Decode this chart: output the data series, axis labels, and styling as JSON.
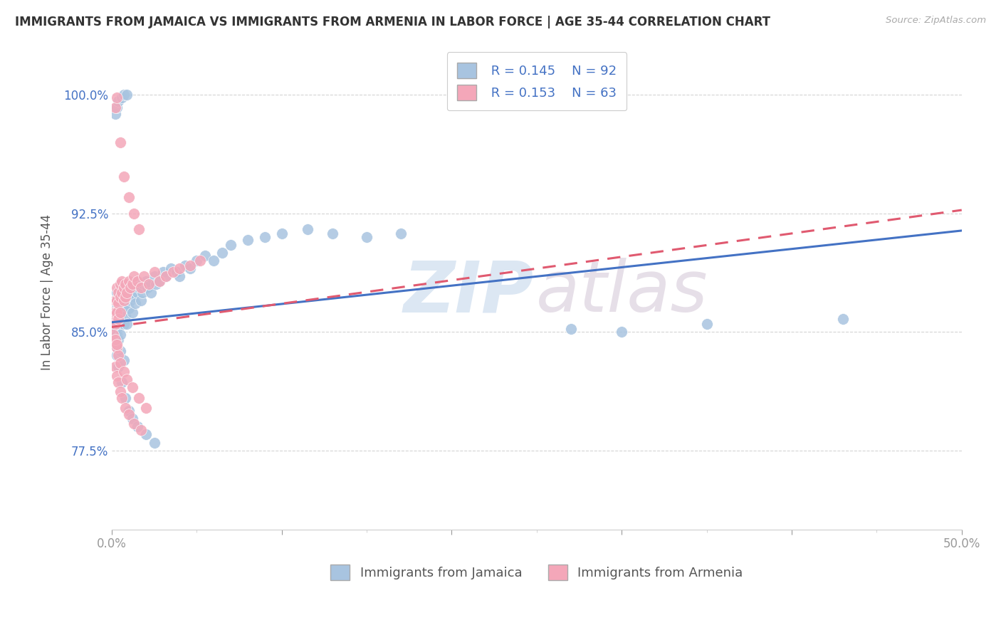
{
  "title": "IMMIGRANTS FROM JAMAICA VS IMMIGRANTS FROM ARMENIA IN LABOR FORCE | AGE 35-44 CORRELATION CHART",
  "source": "Source: ZipAtlas.com",
  "xlabel_jamaica": "Immigrants from Jamaica",
  "xlabel_armenia": "Immigrants from Armenia",
  "ylabel": "In Labor Force | Age 35-44",
  "xlim": [
    0.0,
    0.5
  ],
  "ylim": [
    0.725,
    1.025
  ],
  "yticks": [
    0.775,
    0.85,
    0.925,
    1.0
  ],
  "ytick_labels": [
    "77.5%",
    "85.0%",
    "92.5%",
    "100.0%"
  ],
  "r_jamaica": 0.145,
  "n_jamaica": 92,
  "r_armenia": 0.153,
  "n_armenia": 63,
  "color_jamaica": "#a8c4e0",
  "color_armenia": "#f4a7b9",
  "line_color_jamaica": "#4472c4",
  "line_color_armenia": "#e05a70",
  "legend_text_color": "#4472c4",
  "grid_color": "#d0d0d0",
  "background_color": "#ffffff",
  "j_line_x0": 0.0,
  "j_line_y0": 0.856,
  "j_line_x1": 0.5,
  "j_line_y1": 0.914,
  "a_line_x0": 0.0,
  "a_line_y0": 0.853,
  "a_line_x1": 0.5,
  "a_line_y1": 0.927,
  "jamaica_x": [
    0.001,
    0.001,
    0.001,
    0.002,
    0.002,
    0.002,
    0.002,
    0.003,
    0.003,
    0.003,
    0.003,
    0.003,
    0.004,
    0.004,
    0.004,
    0.004,
    0.005,
    0.005,
    0.005,
    0.005,
    0.005,
    0.006,
    0.006,
    0.006,
    0.007,
    0.007,
    0.007,
    0.008,
    0.008,
    0.009,
    0.009,
    0.01,
    0.01,
    0.011,
    0.012,
    0.012,
    0.013,
    0.014,
    0.015,
    0.015,
    0.016,
    0.017,
    0.018,
    0.019,
    0.02,
    0.021,
    0.022,
    0.023,
    0.025,
    0.026,
    0.028,
    0.03,
    0.032,
    0.035,
    0.038,
    0.04,
    0.043,
    0.046,
    0.05,
    0.055,
    0.06,
    0.065,
    0.07,
    0.08,
    0.09,
    0.1,
    0.115,
    0.13,
    0.15,
    0.17,
    0.003,
    0.004,
    0.006,
    0.008,
    0.01,
    0.012,
    0.015,
    0.02,
    0.025,
    0.003,
    0.005,
    0.007,
    0.27,
    0.3,
    0.35,
    0.43,
    0.002,
    0.003,
    0.004,
    0.006,
    0.007,
    0.009
  ],
  "jamaica_y": [
    0.86,
    0.858,
    0.856,
    0.87,
    0.865,
    0.855,
    0.85,
    0.875,
    0.868,
    0.862,
    0.852,
    0.848,
    0.872,
    0.86,
    0.855,
    0.845,
    0.88,
    0.87,
    0.865,
    0.858,
    0.848,
    0.878,
    0.87,
    0.862,
    0.875,
    0.865,
    0.855,
    0.872,
    0.86,
    0.868,
    0.855,
    0.875,
    0.865,
    0.87,
    0.878,
    0.862,
    0.872,
    0.868,
    0.882,
    0.875,
    0.878,
    0.87,
    0.875,
    0.88,
    0.882,
    0.878,
    0.88,
    0.875,
    0.885,
    0.88,
    0.882,
    0.888,
    0.885,
    0.89,
    0.888,
    0.885,
    0.892,
    0.89,
    0.895,
    0.898,
    0.895,
    0.9,
    0.905,
    0.908,
    0.91,
    0.912,
    0.915,
    0.912,
    0.91,
    0.912,
    0.835,
    0.828,
    0.818,
    0.808,
    0.8,
    0.795,
    0.79,
    0.785,
    0.78,
    0.84,
    0.838,
    0.832,
    0.852,
    0.85,
    0.855,
    0.858,
    0.988,
    0.992,
    0.996,
    0.998,
    1.0,
    1.0
  ],
  "armenia_x": [
    0.001,
    0.001,
    0.002,
    0.002,
    0.002,
    0.003,
    0.003,
    0.003,
    0.004,
    0.004,
    0.004,
    0.005,
    0.005,
    0.005,
    0.006,
    0.006,
    0.007,
    0.007,
    0.008,
    0.008,
    0.009,
    0.01,
    0.011,
    0.012,
    0.013,
    0.015,
    0.017,
    0.019,
    0.022,
    0.025,
    0.028,
    0.032,
    0.036,
    0.04,
    0.046,
    0.052,
    0.002,
    0.003,
    0.004,
    0.005,
    0.006,
    0.008,
    0.01,
    0.013,
    0.017,
    0.003,
    0.004,
    0.005,
    0.007,
    0.009,
    0.012,
    0.016,
    0.02,
    0.001,
    0.002,
    0.003,
    0.002,
    0.003,
    0.005,
    0.007,
    0.01,
    0.013,
    0.016
  ],
  "armenia_y": [
    0.862,
    0.858,
    0.87,
    0.862,
    0.855,
    0.878,
    0.87,
    0.862,
    0.875,
    0.868,
    0.858,
    0.88,
    0.872,
    0.862,
    0.882,
    0.875,
    0.878,
    0.87,
    0.88,
    0.872,
    0.875,
    0.882,
    0.878,
    0.88,
    0.885,
    0.882,
    0.878,
    0.885,
    0.88,
    0.888,
    0.882,
    0.885,
    0.888,
    0.89,
    0.892,
    0.895,
    0.828,
    0.822,
    0.818,
    0.812,
    0.808,
    0.802,
    0.798,
    0.792,
    0.788,
    0.84,
    0.835,
    0.83,
    0.825,
    0.82,
    0.815,
    0.808,
    0.802,
    0.848,
    0.845,
    0.842,
    0.992,
    0.998,
    0.97,
    0.948,
    0.935,
    0.925,
    0.915
  ]
}
